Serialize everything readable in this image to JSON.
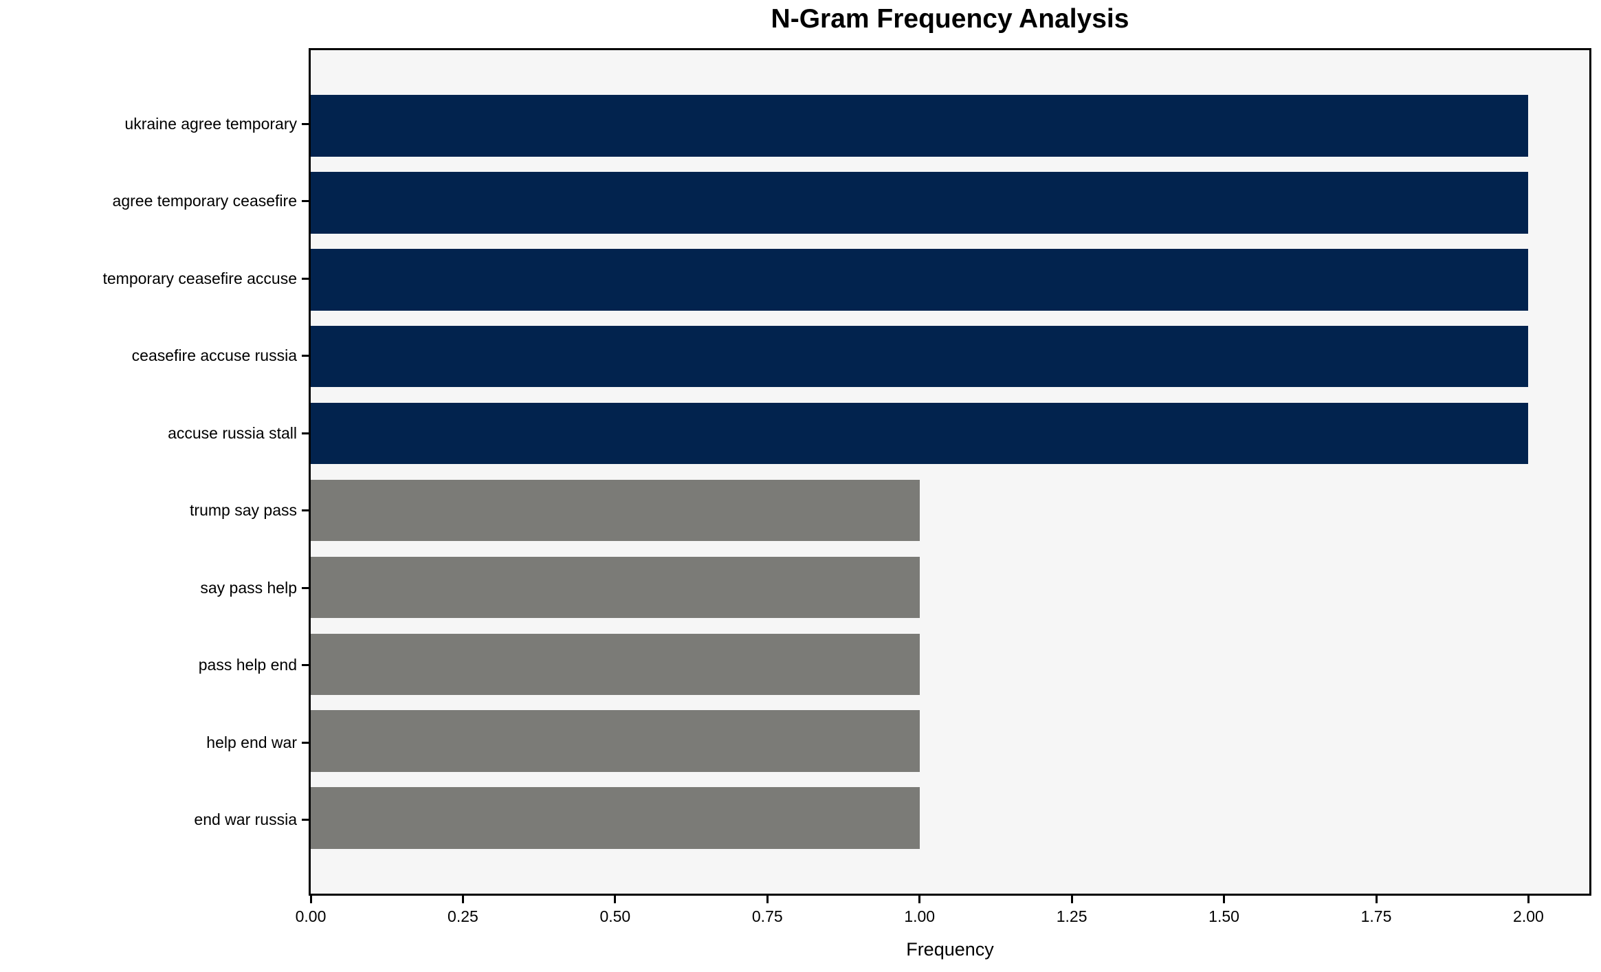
{
  "chart_data": {
    "type": "bar",
    "orientation": "horizontal",
    "title": "N-Gram Frequency Analysis",
    "xlabel": "Frequency",
    "ylabel": "",
    "categories": [
      "ukraine agree temporary",
      "agree temporary ceasefire",
      "temporary ceasefire accuse",
      "ceasefire accuse russia",
      "accuse russia stall",
      "trump say pass",
      "say pass help",
      "pass help end",
      "help end war",
      "end war russia"
    ],
    "values": [
      2,
      2,
      2,
      2,
      2,
      1,
      1,
      1,
      1,
      1
    ],
    "bar_colors": [
      "#02234e",
      "#02234e",
      "#02234e",
      "#02234e",
      "#02234e",
      "#7b7b77",
      "#7b7b77",
      "#7b7b77",
      "#7b7b77",
      "#7b7b77"
    ],
    "xlim": [
      0,
      2.1
    ],
    "xticks": [
      0.0,
      0.25,
      0.5,
      0.75,
      1.0,
      1.25,
      1.5,
      1.75,
      2.0
    ],
    "xtick_labels": [
      "0.00",
      "0.25",
      "0.50",
      "0.75",
      "1.00",
      "1.25",
      "1.50",
      "1.75",
      "2.00"
    ],
    "grid": false,
    "legend": false,
    "colors": {
      "bar_high": "#02234e",
      "bar_low": "#7b7b77",
      "plot_background": "#f6f6f6",
      "figure_background": "#ffffff",
      "spine": "#000000",
      "text": "#000000"
    }
  }
}
